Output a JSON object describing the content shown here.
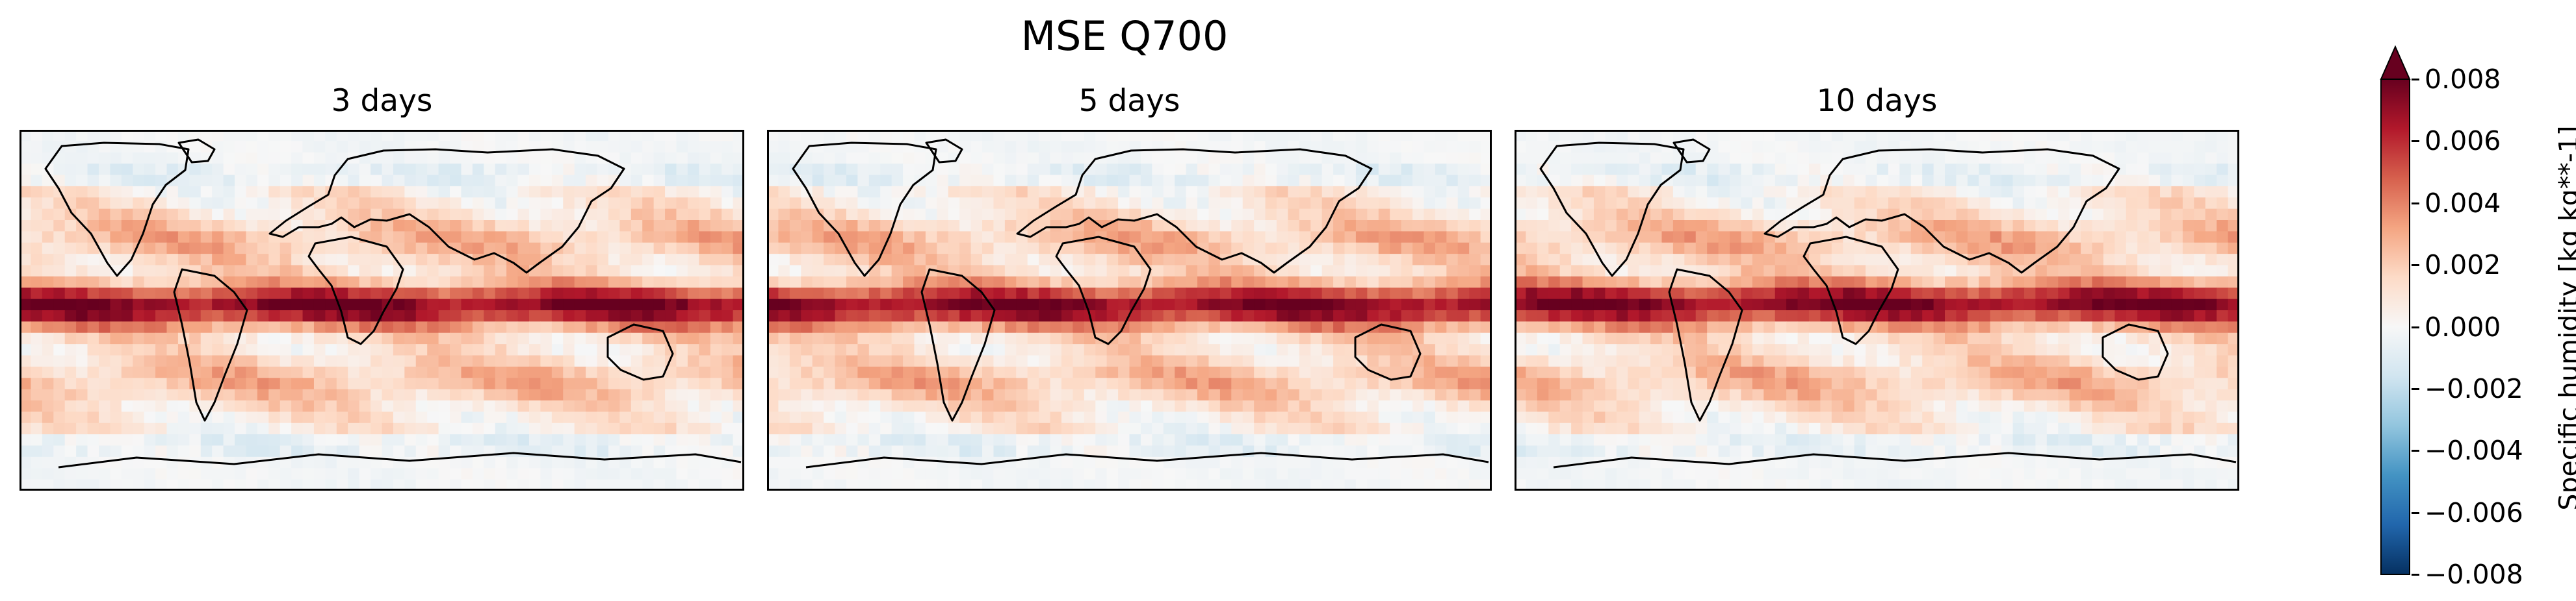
{
  "title": "MSE Q700",
  "panels": [
    {
      "title": "3 days"
    },
    {
      "title": "5 days"
    },
    {
      "title": "10 days"
    }
  ],
  "colorbar": {
    "label": "Specific humidity [kg kg**-1]",
    "ticks": [
      "0.008",
      "0.006",
      "0.004",
      "0.002",
      "0.000",
      "−0.002",
      "−0.004",
      "−0.006",
      "−0.008"
    ],
    "range": [
      -0.008,
      0.008
    ],
    "colormap": "RdBu_r",
    "extend": "both"
  },
  "chart_data": {
    "type": "heatmap",
    "title": "MSE Q700",
    "projection": "PlateCarree global map with coastlines",
    "panels": [
      "3 days",
      "5 days",
      "10 days"
    ],
    "value_range": [
      -0.008,
      0.008
    ],
    "colorbar_label": "Specific humidity [kg kg**-1]",
    "description_values": {
      "tropics_max": 0.008,
      "extratropics_typical": 0.002,
      "high_latitudes_typical": 0.0005
    }
  }
}
